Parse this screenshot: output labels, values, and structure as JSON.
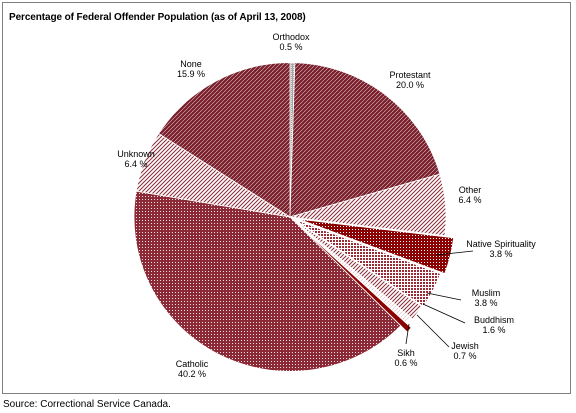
{
  "chart_data": {
    "type": "pie",
    "title": "Percentage of Federal Offender Population (as of April 13, 2008)",
    "slices": [
      {
        "label": "Orthodox",
        "value": 0.5,
        "display": "0.5 %",
        "color": "#bfbfbf",
        "pattern": "gray"
      },
      {
        "label": "Protestant",
        "value": 20.0,
        "display": "20.0 %",
        "color": "#7a1f2b",
        "pattern": "diag-dark"
      },
      {
        "label": "Other",
        "value": 6.4,
        "display": "6.4 %",
        "color": "#8b2a36",
        "pattern": "diag-light"
      },
      {
        "label": "Native Spirituality",
        "value": 3.8,
        "display": "3.8 %",
        "color": "#8b0000",
        "pattern": "dots"
      },
      {
        "label": "Muslim",
        "value": 3.8,
        "display": "3.8 %",
        "color": "#9a2a33",
        "pattern": "dots-light"
      },
      {
        "label": "Buddhism",
        "value": 1.6,
        "display": "1.6 %",
        "color": "#9a3340",
        "pattern": "diag-light"
      },
      {
        "label": "Jewish",
        "value": 0.7,
        "display": "0.7 %",
        "color": "#ffffff",
        "pattern": "white"
      },
      {
        "label": "Sikh",
        "value": 0.6,
        "display": "0.6 %",
        "color": "#8b0000",
        "pattern": "solid-dark"
      },
      {
        "label": "Catholic",
        "value": 40.2,
        "display": "40.2 %",
        "color": "#8b2a36",
        "pattern": "dots-fine"
      },
      {
        "label": "Unknown",
        "value": 6.4,
        "display": "6.4 %",
        "color": "#d9b3b8",
        "pattern": "diag-light"
      },
      {
        "label": "None",
        "value": 15.9,
        "display": "15.9 %",
        "color": "#7a1f2b",
        "pattern": "diag-dark"
      }
    ],
    "start_angle": "12 o'clock",
    "direction": "clockwise",
    "legend": "none",
    "label_style": "callouts with leader lines"
  },
  "source": "Source:  Correctional Service Canada."
}
